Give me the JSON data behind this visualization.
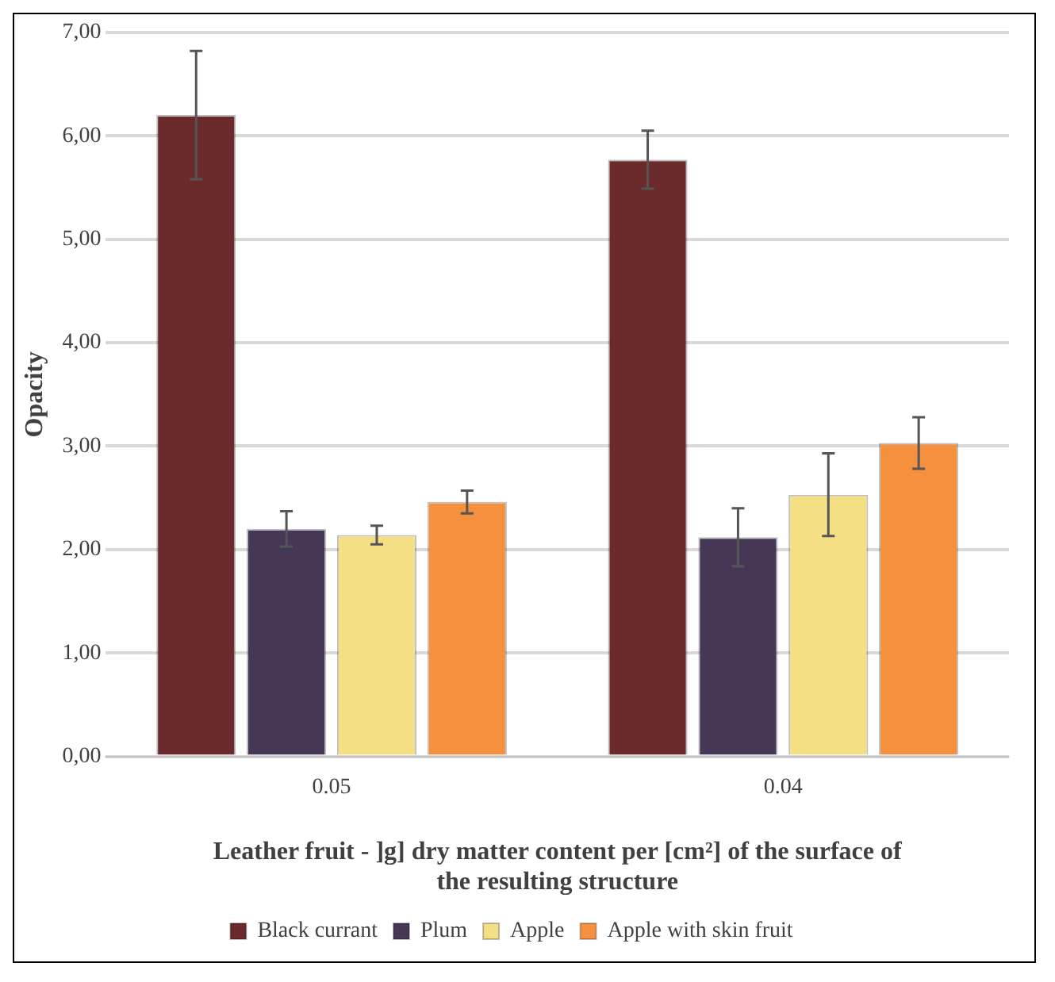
{
  "chart_data": {
    "type": "bar",
    "xlabel": "Leather fruit - ]g] dry matter content per [cm²] of the surface of the resulting structure",
    "ylabel": "Opacity",
    "categories": [
      "0.05",
      "0.04"
    ],
    "series": [
      {
        "name": "Black currant",
        "color": "#6b2a2c",
        "values": [
          6.2,
          5.77
        ],
        "errors": [
          0.62,
          0.28
        ]
      },
      {
        "name": "Plum",
        "color": "#463757",
        "values": [
          2.2,
          2.12
        ],
        "errors": [
          0.17,
          0.28
        ]
      },
      {
        "name": "Apple",
        "color": "#f5df85",
        "values": [
          2.14,
          2.53
        ],
        "errors": [
          0.09,
          0.4
        ]
      },
      {
        "name": "Apple with skin fruit",
        "color": "#f5913e",
        "values": [
          2.46,
          3.03
        ],
        "errors": [
          0.11,
          0.25
        ]
      }
    ],
    "ylim": [
      0,
      7
    ],
    "yticks": [
      {
        "value": 0,
        "label": "0,00"
      },
      {
        "value": 1,
        "label": "1,00"
      },
      {
        "value": 2,
        "label": "2,00"
      },
      {
        "value": 3,
        "label": "3,00"
      },
      {
        "value": 4,
        "label": "4,00"
      },
      {
        "value": 5,
        "label": "5,00"
      },
      {
        "value": 6,
        "label": "6,00"
      },
      {
        "value": 7,
        "label": "7,00"
      }
    ],
    "grid": "y",
    "legend": "bottom"
  }
}
